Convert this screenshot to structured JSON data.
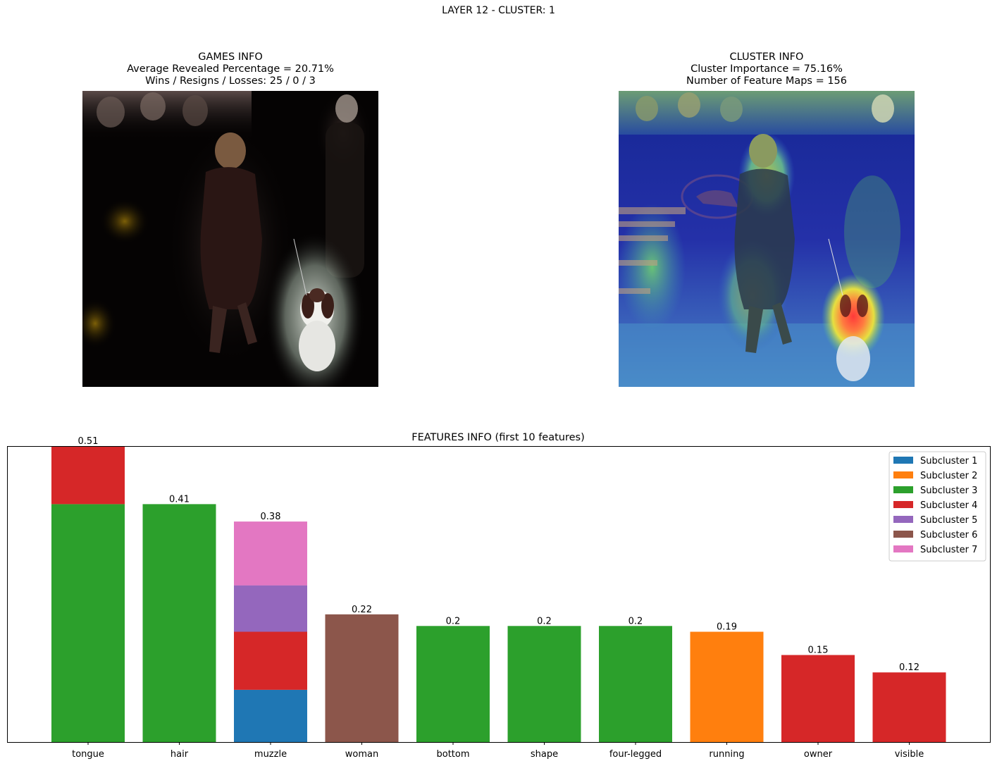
{
  "suptitle": "LAYER 12 - CLUSTER: 1",
  "games_info": {
    "line1": "GAMES INFO",
    "line2": "Average Revealed Percentage = 20.71%",
    "line3": "Wins / Resigns / Losses: 25 / 0 / 3"
  },
  "cluster_info": {
    "line1": "CLUSTER INFO",
    "line2": "Cluster Importance = 75.16%",
    "line3": "Number of Feature Maps = 156"
  },
  "chart_data": {
    "type": "bar",
    "stacked": true,
    "title": "FEATURES INFO (first 10 features)",
    "xlabel": "",
    "ylabel": "",
    "ylim": [
      0,
      0.51
    ],
    "grid": false,
    "legend_position": "top-right",
    "categories": [
      "tongue",
      "hair",
      "muzzle",
      "woman",
      "bottom",
      "shape",
      "four-legged",
      "running",
      "owner",
      "visible"
    ],
    "totals": [
      0.51,
      0.41,
      0.38,
      0.22,
      0.2,
      0.2,
      0.2,
      0.19,
      0.15,
      0.12
    ],
    "series": [
      {
        "name": "Subcluster 1",
        "color": "#1f77b4",
        "values": [
          0,
          0,
          0.09,
          0,
          0,
          0,
          0,
          0,
          0,
          0
        ]
      },
      {
        "name": "Subcluster 2",
        "color": "#ff7f0e",
        "values": [
          0,
          0,
          0,
          0,
          0,
          0,
          0,
          0.19,
          0,
          0
        ]
      },
      {
        "name": "Subcluster 3",
        "color": "#2ca02c",
        "values": [
          0.41,
          0.41,
          0,
          0,
          0.2,
          0.2,
          0.2,
          0,
          0,
          0
        ]
      },
      {
        "name": "Subcluster 4",
        "color": "#d62728",
        "values": [
          0.1,
          0,
          0.1,
          0,
          0,
          0,
          0,
          0,
          0.15,
          0.12
        ]
      },
      {
        "name": "Subcluster 5",
        "color": "#9467bd",
        "values": [
          0,
          0,
          0.08,
          0,
          0,
          0,
          0,
          0,
          0,
          0
        ]
      },
      {
        "name": "Subcluster 6",
        "color": "#8c564b",
        "values": [
          0,
          0,
          0,
          0.22,
          0,
          0,
          0,
          0,
          0,
          0
        ]
      },
      {
        "name": "Subcluster 7",
        "color": "#e377c2",
        "values": [
          0,
          0,
          0.11,
          0,
          0,
          0,
          0,
          0,
          0,
          0
        ]
      }
    ]
  }
}
